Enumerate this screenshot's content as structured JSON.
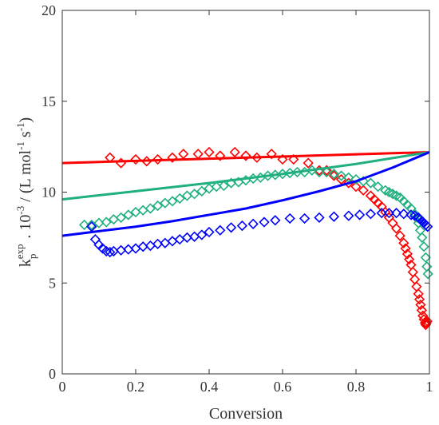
{
  "chart_data": {
    "type": "scatter",
    "title": "",
    "xlabel": "Conversion",
    "ylabel": {
      "k": "k",
      "sup1": "exp",
      "sub": "p",
      "mid": " . 10",
      "sup2": "-3",
      "unit_open": " / (L mol",
      "sup3": "-1",
      "unit_mid": " s",
      "sup4": "-1",
      "unit_close": ")"
    },
    "xlim": [
      0,
      1
    ],
    "ylim": [
      0,
      20
    ],
    "x_ticks": [
      0,
      0.2,
      0.4,
      0.6,
      0.8,
      1
    ],
    "x_tick_labels": [
      "0",
      "0.2",
      "0.4",
      "0.6",
      "0.8",
      "1"
    ],
    "y_ticks": [
      0,
      5,
      10,
      15,
      20
    ],
    "y_tick_labels": [
      "0",
      "5",
      "10",
      "15",
      "20"
    ],
    "grid": false,
    "legend": "none",
    "lines": [
      {
        "color": "#ff0000",
        "x": [
          0,
          1
        ],
        "y": [
          11.6,
          12.2
        ]
      },
      {
        "color": "#20b080",
        "x": [
          0,
          0.2,
          0.4,
          0.6,
          0.8,
          1
        ],
        "y": [
          9.6,
          10.05,
          10.5,
          11.0,
          11.55,
          12.2
        ]
      },
      {
        "color": "#0000ff",
        "x": [
          0,
          0.1,
          0.2,
          0.3,
          0.4,
          0.5,
          0.6,
          0.7,
          0.8,
          0.9,
          1
        ],
        "y": [
          7.6,
          7.85,
          8.1,
          8.4,
          8.75,
          9.1,
          9.55,
          10.05,
          10.6,
          11.35,
          12.2
        ]
      }
    ],
    "series": [
      {
        "color": "#ff0000",
        "x": [
          0.13,
          0.16,
          0.2,
          0.23,
          0.26,
          0.3,
          0.33,
          0.37,
          0.4,
          0.43,
          0.47,
          0.5,
          0.53,
          0.57,
          0.6,
          0.63,
          0.67,
          0.7,
          0.72,
          0.74,
          0.76,
          0.78,
          0.8,
          0.82,
          0.84,
          0.85,
          0.86,
          0.87,
          0.88,
          0.89,
          0.9,
          0.91,
          0.92,
          0.93,
          0.935,
          0.94,
          0.945,
          0.95,
          0.955,
          0.96,
          0.965,
          0.97,
          0.973,
          0.976,
          0.979,
          0.982,
          0.985,
          0.988,
          0.99,
          0.992,
          0.994
        ],
        "y": [
          11.9,
          11.6,
          11.8,
          11.7,
          11.8,
          11.9,
          12.1,
          12.1,
          12.2,
          12.0,
          12.2,
          12.0,
          11.9,
          12.1,
          11.8,
          11.8,
          11.6,
          11.2,
          11.2,
          10.9,
          10.7,
          10.5,
          10.3,
          10.1,
          9.8,
          9.6,
          9.4,
          9.2,
          8.9,
          8.6,
          8.3,
          8.0,
          7.6,
          7.2,
          6.9,
          6.6,
          6.3,
          6.0,
          5.6,
          5.2,
          4.8,
          4.4,
          4.1,
          3.8,
          3.5,
          3.2,
          3.0,
          2.8,
          2.7,
          2.8,
          2.9
        ]
      },
      {
        "color": "#20b080",
        "x": [
          0.06,
          0.08,
          0.1,
          0.12,
          0.14,
          0.16,
          0.18,
          0.2,
          0.22,
          0.24,
          0.26,
          0.28,
          0.3,
          0.32,
          0.34,
          0.36,
          0.38,
          0.4,
          0.42,
          0.44,
          0.46,
          0.48,
          0.5,
          0.52,
          0.54,
          0.56,
          0.58,
          0.6,
          0.62,
          0.64,
          0.66,
          0.68,
          0.7,
          0.72,
          0.74,
          0.76,
          0.78,
          0.8,
          0.82,
          0.84,
          0.86,
          0.88,
          0.89,
          0.9,
          0.91,
          0.92,
          0.93,
          0.94,
          0.95,
          0.96,
          0.965,
          0.97,
          0.975,
          0.98,
          0.985,
          0.99,
          0.993,
          0.996
        ],
        "y": [
          8.2,
          8.2,
          8.3,
          8.35,
          8.5,
          8.6,
          8.75,
          8.9,
          9.0,
          9.1,
          9.25,
          9.4,
          9.5,
          9.65,
          9.8,
          9.9,
          10.05,
          10.2,
          10.3,
          10.35,
          10.5,
          10.55,
          10.65,
          10.75,
          10.8,
          10.9,
          10.95,
          11.0,
          11.05,
          11.1,
          11.1,
          11.2,
          11.1,
          11.1,
          11.0,
          10.9,
          10.8,
          10.7,
          10.6,
          10.5,
          10.3,
          10.1,
          10.0,
          9.9,
          9.8,
          9.7,
          9.5,
          9.3,
          9.1,
          8.8,
          8.6,
          8.3,
          7.9,
          7.5,
          7.0,
          6.4,
          5.9,
          5.5
        ]
      },
      {
        "color": "#0000ff",
        "x": [
          0.08,
          0.09,
          0.1,
          0.11,
          0.12,
          0.13,
          0.14,
          0.16,
          0.18,
          0.2,
          0.22,
          0.24,
          0.26,
          0.28,
          0.3,
          0.32,
          0.34,
          0.36,
          0.38,
          0.4,
          0.43,
          0.46,
          0.49,
          0.52,
          0.55,
          0.58,
          0.62,
          0.66,
          0.7,
          0.74,
          0.78,
          0.81,
          0.84,
          0.87,
          0.89,
          0.91,
          0.93,
          0.95,
          0.96,
          0.97,
          0.975,
          0.98,
          0.985,
          0.99,
          0.995
        ],
        "y": [
          8.1,
          7.4,
          7.1,
          6.9,
          6.75,
          6.7,
          6.75,
          6.8,
          6.85,
          6.9,
          7.0,
          7.05,
          7.15,
          7.2,
          7.3,
          7.4,
          7.5,
          7.55,
          7.65,
          7.8,
          7.9,
          8.05,
          8.15,
          8.25,
          8.35,
          8.45,
          8.55,
          8.55,
          8.6,
          8.65,
          8.7,
          8.75,
          8.8,
          8.85,
          8.85,
          8.85,
          8.8,
          8.75,
          8.7,
          8.6,
          8.5,
          8.4,
          8.3,
          8.2,
          8.1
        ]
      }
    ]
  }
}
